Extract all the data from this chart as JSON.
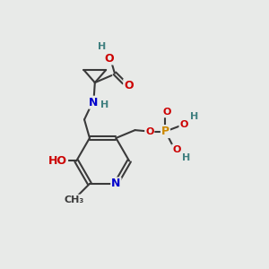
{
  "bg_color": "#e8eae8",
  "bond_color": "#3a3a3a",
  "bond_width": 1.5,
  "atom_colors": {
    "C": "#3a3a3a",
    "N": "#0000cc",
    "O": "#cc0000",
    "P": "#cc8800",
    "H": "#408080"
  },
  "font_size": 9,
  "font_size_small": 8
}
